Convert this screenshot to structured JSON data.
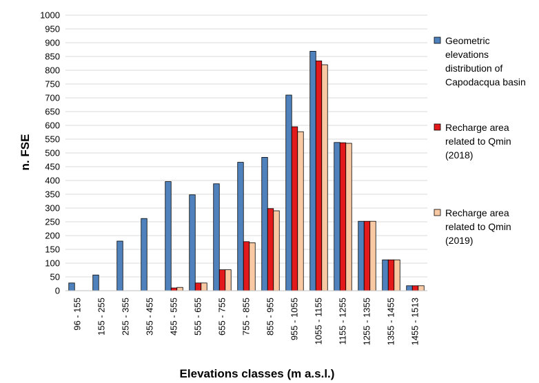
{
  "chart_data": {
    "type": "bar",
    "xlabel": "Elevations classes (m a.s.l.)",
    "ylabel": "n. FSE",
    "ylim": [
      0,
      1000
    ],
    "ytick_step": 50,
    "grid": true,
    "legend_position": "right",
    "categories": [
      "96 - 155",
      "155 - 255",
      "255 - 355",
      "355 - 455",
      "455 - 555",
      "555 - 655",
      "655 - 755",
      "755 - 855",
      "855 - 955",
      "955 - 1055",
      "1055 - 1155",
      "1155 - 1255",
      "1255 - 1355",
      "1355 - 1455",
      "1455 - 1513"
    ],
    "series": [
      {
        "name": "Geometric elevations distribution of Capodacqua basin",
        "legend_lines": [
          "Geometric",
          "elevations",
          "distribution of",
          "Capodacqua basin"
        ],
        "color": "#4F81BD",
        "values": [
          28,
          57,
          180,
          262,
          396,
          348,
          388,
          466,
          484,
          710,
          869,
          538,
          252,
          112,
          18
        ]
      },
      {
        "name": "Recharge area related to Qmin (2018)",
        "legend_lines": [
          "Recharge area",
          "related to Qmin",
          "(2018)"
        ],
        "color": "#E31A1C",
        "values": [
          0,
          0,
          0,
          0,
          10,
          28,
          76,
          178,
          298,
          595,
          834,
          537,
          252,
          112,
          18
        ]
      },
      {
        "name": "Recharge area related to Qmin (2019)",
        "legend_lines": [
          "Recharge area",
          "related to Qmin",
          "(2019)"
        ],
        "color": "#F8C9A2",
        "values": [
          0,
          0,
          0,
          0,
          12,
          28,
          76,
          174,
          290,
          577,
          820,
          535,
          252,
          112,
          18
        ]
      }
    ]
  }
}
